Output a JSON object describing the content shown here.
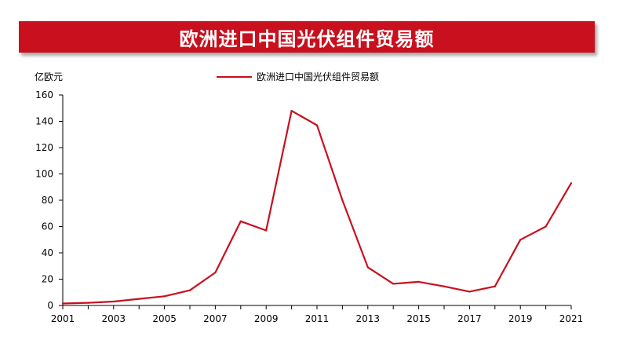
{
  "page_title": "欧洲进口中国光伏组件贸易额",
  "chart_data": {
    "type": "line",
    "title": "欧洲进口中国光伏组件贸易额",
    "ylabel": "亿欧元",
    "xlabel": "",
    "x": [
      2001,
      2002,
      2003,
      2004,
      2005,
      2006,
      2007,
      2008,
      2009,
      2010,
      2011,
      2012,
      2013,
      2014,
      2015,
      2016,
      2017,
      2018,
      2019,
      2020,
      2021
    ],
    "xticks": [
      "2001",
      "2003",
      "2005",
      "2007",
      "2009",
      "2011",
      "2013",
      "2015",
      "2017",
      "2019",
      "2021"
    ],
    "yticks": [
      "0",
      "20",
      "40",
      "60",
      "80",
      "100",
      "120",
      "140",
      "160"
    ],
    "ylim": [
      0,
      160
    ],
    "xlim": [
      2001,
      2021
    ],
    "series": [
      {
        "name": "欧洲进口中国光伏组件贸易额",
        "color": "#c8101e",
        "values": [
          1.5,
          2,
          3,
          5,
          7,
          11.5,
          25,
          64,
          57,
          148,
          137,
          80,
          29,
          16.5,
          18,
          14.5,
          10.5,
          14.5,
          50,
          60,
          93
        ]
      }
    ],
    "legend_position": "top-center",
    "grid": false
  }
}
